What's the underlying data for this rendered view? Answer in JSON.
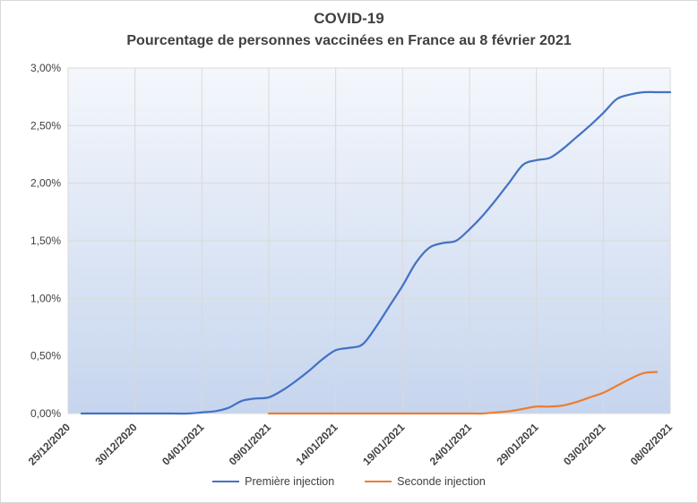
{
  "chart_data": {
    "type": "line",
    "title": "COVID-19",
    "subtitle": "Pourcentage de personnes vaccinées en France au 8 février 2021",
    "xlabel": "",
    "ylabel": "",
    "x_tick_labels": [
      "25/12/2020",
      "30/12/2020",
      "04/01/2021",
      "09/01/2021",
      "14/01/2021",
      "19/01/2021",
      "24/01/2021",
      "29/01/2021",
      "03/02/2021",
      "08/02/2021"
    ],
    "y_tick_labels": [
      "0,00%",
      "0,50%",
      "1,00%",
      "1,50%",
      "2,00%",
      "2,50%",
      "3,00%"
    ],
    "ylim": [
      0,
      3.0
    ],
    "x_range_days": [
      0,
      45
    ],
    "grid": true,
    "legend_position": "bottom",
    "series": [
      {
        "name": "Première injection",
        "color": "#4472c4",
        "x_days": [
          1,
          3,
          5,
          7,
          9,
          10,
          11,
          12,
          13,
          14,
          15,
          16,
          17,
          18,
          19,
          20,
          21,
          22,
          23,
          24,
          25,
          26,
          27,
          28,
          29,
          30,
          31,
          32,
          33,
          34,
          35,
          36,
          37,
          38,
          39,
          40,
          41,
          42,
          43,
          44,
          45
        ],
        "values": [
          0.0,
          0.0,
          0.0,
          0.0,
          0.0,
          0.01,
          0.02,
          0.05,
          0.11,
          0.13,
          0.14,
          0.2,
          0.28,
          0.37,
          0.47,
          0.55,
          0.57,
          0.6,
          0.75,
          0.93,
          1.11,
          1.31,
          1.44,
          1.48,
          1.5,
          1.6,
          1.72,
          1.86,
          2.01,
          2.16,
          2.2,
          2.22,
          2.3,
          2.4,
          2.5,
          2.61,
          2.73,
          2.77,
          2.79,
          2.79,
          2.79
        ]
      },
      {
        "name": "Seconde injection",
        "color": "#ed7d31",
        "x_days": [
          15,
          20,
          25,
          28,
          29,
          30,
          31,
          32,
          33,
          34,
          35,
          36,
          37,
          38,
          39,
          40,
          41,
          42,
          43,
          44
        ],
        "values": [
          0.0,
          0.0,
          0.0,
          0.0,
          0.0,
          0.0,
          0.0,
          0.01,
          0.02,
          0.04,
          0.06,
          0.06,
          0.07,
          0.1,
          0.14,
          0.18,
          0.24,
          0.3,
          0.35,
          0.36
        ]
      }
    ]
  }
}
